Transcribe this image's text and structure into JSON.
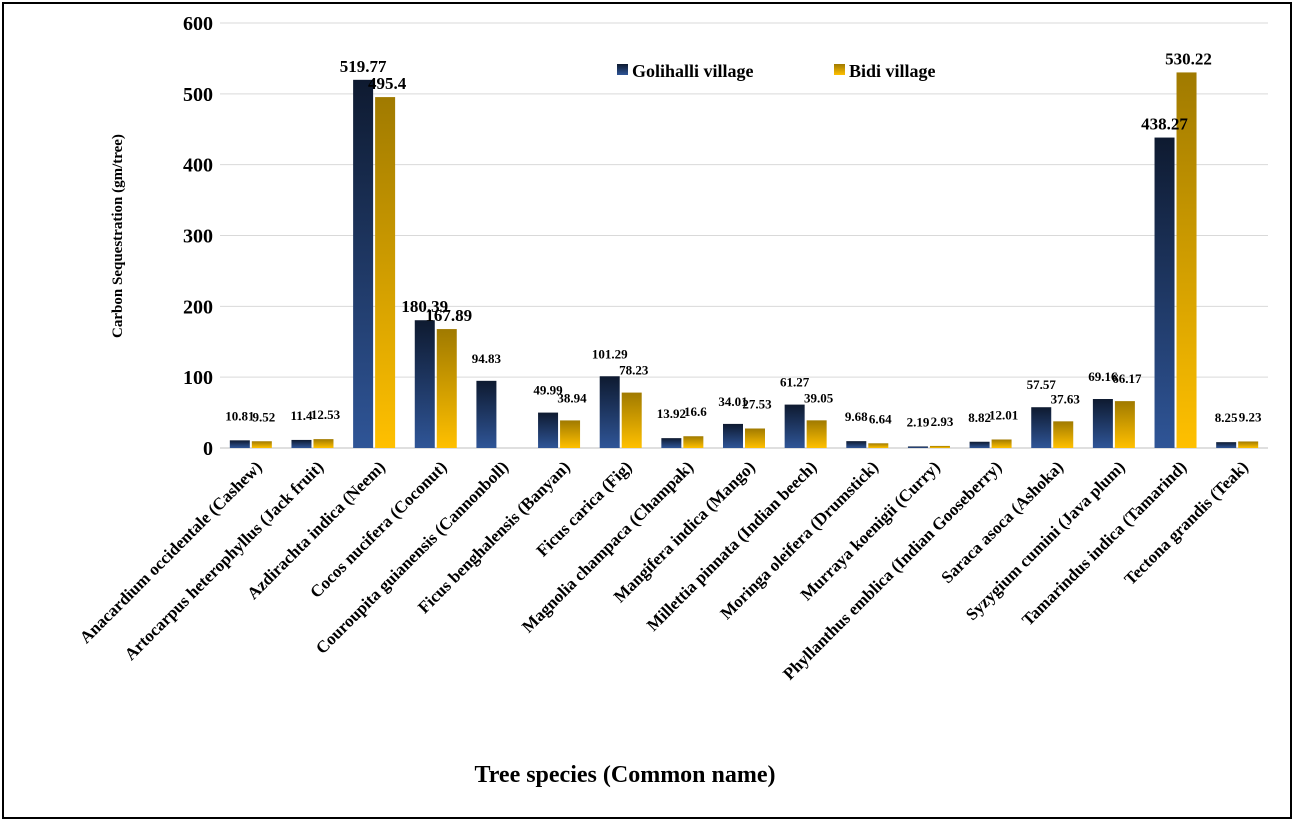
{
  "chart_data": {
    "type": "bar",
    "xlabel": "Tree species (Common name)",
    "ylabel": "Carbon Sequestration (gm/tree)",
    "ylim": [
      0,
      600
    ],
    "yticks": [
      0,
      100,
      200,
      300,
      400,
      500,
      600
    ],
    "grid": true,
    "legend_position": "top-right",
    "categories": [
      "Anacardium occidentale (Cashew)",
      "Artocarpus heterophyllus (Jack fruit)",
      "Azdirachta indica (Neem)",
      "Cocos nucifera (Coconut)",
      "Couroupita guianensis (Cannonboll)",
      "Ficus benghalensis (Banyan)",
      "Ficus carica (Fig)",
      "Magnolia champaca (Champak)",
      "Mangifera indica (Mango)",
      "Millettia pinnata (Indian beech)",
      "Moringa oleifera (Drumstick)",
      "Murraya koenigii (Curry)",
      "Phyllanthus emblica (Indian Gooseberry)",
      "Saraca asoca (Ashoka)",
      "Syzygium cumini (Java plum)",
      "Tamarindus indica (Tamarind)",
      "Tectona grandis (Teak)"
    ],
    "series": [
      {
        "name": "Golihalli village",
        "color": "#1f3864",
        "values": [
          10.81,
          11.4,
          519.77,
          180.39,
          94.83,
          49.99,
          101.29,
          13.92,
          34.01,
          61.27,
          9.68,
          2.19,
          8.82,
          57.57,
          69.16,
          438.27,
          8.25
        ],
        "labels": [
          "10.81",
          "11.4",
          "519.77",
          "180.39",
          "94.83",
          "49.99",
          "101.29",
          "13.92",
          "34.01",
          "61.27",
          "9.68",
          "2.19",
          "8.82",
          "57.57",
          "69.16",
          "438.27",
          "8.25"
        ]
      },
      {
        "name": "Bidi village",
        "color": "#c9a000",
        "values": [
          9.52,
          12.53,
          495.4,
          167.89,
          null,
          38.94,
          78.23,
          16.6,
          27.53,
          39.05,
          6.64,
          2.93,
          12.01,
          37.63,
          66.17,
          530.22,
          9.23
        ],
        "labels": [
          "9.52",
          "12.53",
          "495.4",
          "167.89",
          "",
          "38.94",
          "78.23",
          "16.6",
          "27.53",
          "39.05",
          "6.64",
          "2.93",
          "12.01",
          "37.63",
          "66.17",
          "530.22",
          "9.23"
        ]
      }
    ]
  }
}
